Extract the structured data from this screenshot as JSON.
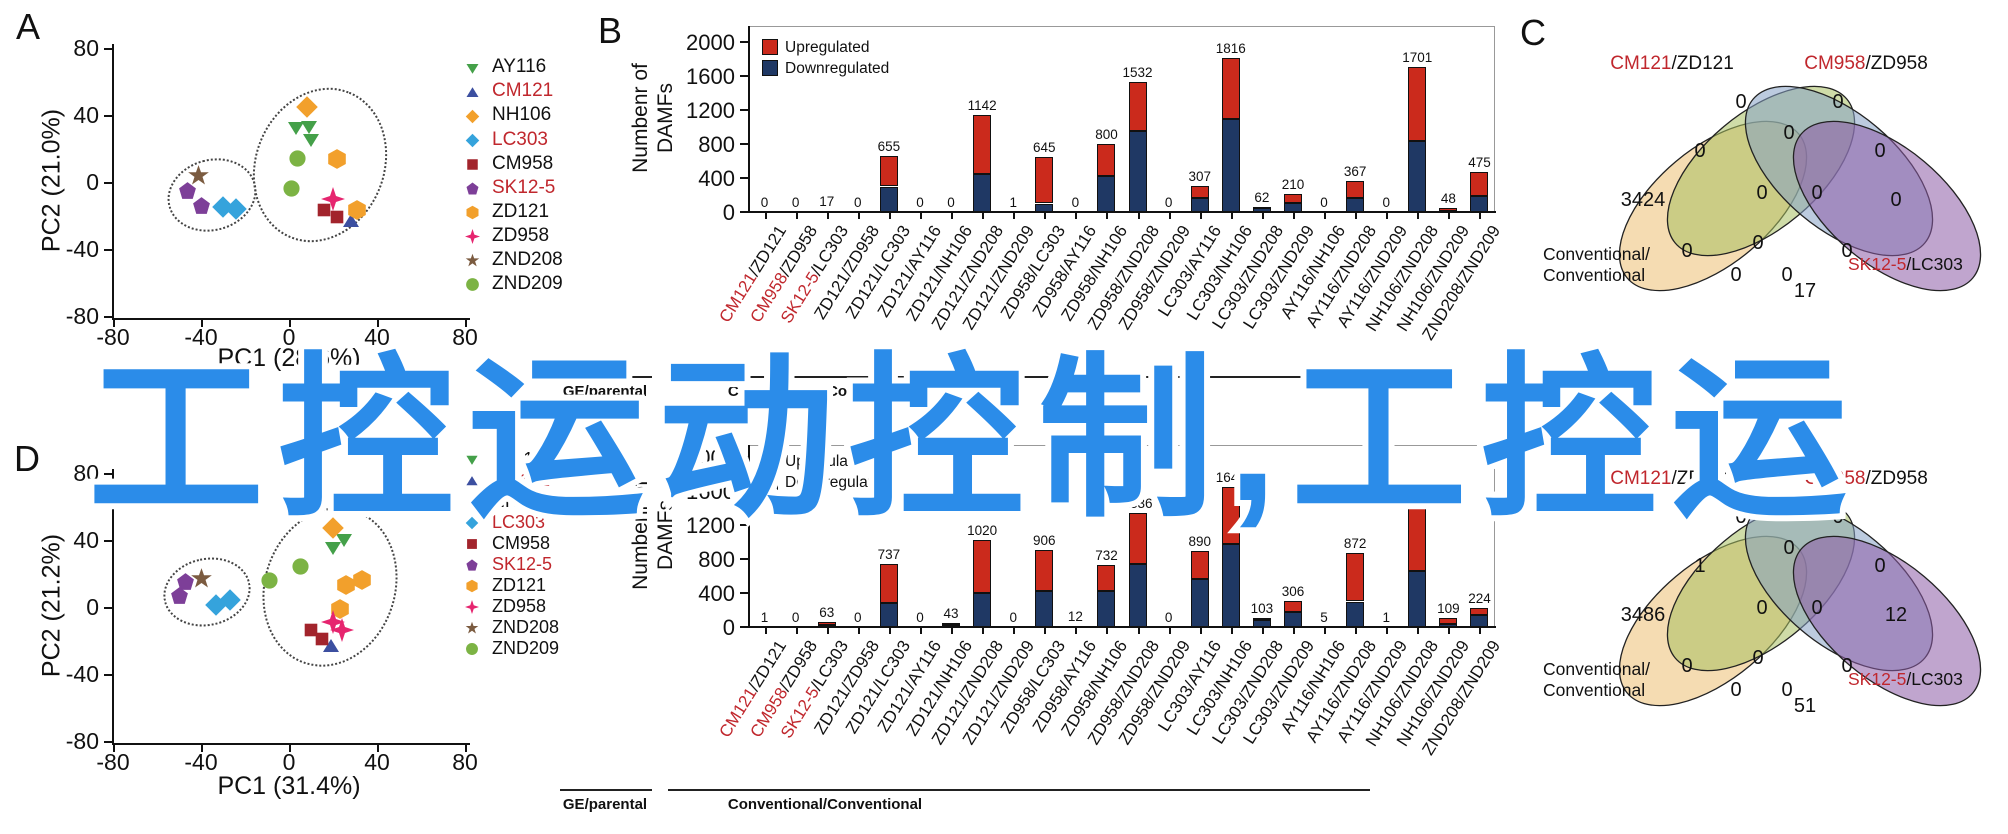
{
  "watermark": {
    "text": "工控运动控制,工控运",
    "color": "#2B8CE9"
  },
  "colors": {
    "upregulated": "#CB2A1C",
    "downregulated": "#1F3864",
    "highlight_red": "#C0272D",
    "venn_fills": [
      "#ECBF73",
      "#A8BF61",
      "#85A0C5",
      "#8C5BA6"
    ]
  },
  "samples": [
    {
      "label": "AY116",
      "shape": "triangle-down",
      "color": "#44A049",
      "highlight": false
    },
    {
      "label": "CM121",
      "shape": "triangle-up",
      "color": "#3C4FA0",
      "highlight": true
    },
    {
      "label": "NH106",
      "shape": "diamond",
      "color": "#F2A02C",
      "highlight": false
    },
    {
      "label": "LC303",
      "shape": "diamond",
      "color": "#35A3DC",
      "highlight": true
    },
    {
      "label": "CM958",
      "shape": "square",
      "color": "#A2242C",
      "highlight": false
    },
    {
      "label": "SK12-5",
      "shape": "pentagon",
      "color": "#7D3F98",
      "highlight": true
    },
    {
      "label": "ZD121",
      "shape": "hexagon",
      "color": "#F2A02C",
      "highlight": false
    },
    {
      "label": "ZD958",
      "shape": "star4",
      "color": "#E6256F",
      "highlight": false
    },
    {
      "label": "ZND208",
      "shape": "star5",
      "color": "#7B5B40",
      "highlight": false
    },
    {
      "label": "ZND209",
      "shape": "circle",
      "color": "#7CB344",
      "highlight": false
    }
  ],
  "panel_a": {
    "letter": "A",
    "xlabel": "PC1 (28.6%)",
    "ylabel": "PC2 (21.0%)",
    "xticks": [
      -80,
      -40,
      0,
      40,
      80
    ],
    "yticks": [
      80,
      40,
      0,
      -40,
      -80
    ]
  },
  "panel_d": {
    "letter": "D",
    "xlabel": "PC1 (31.4%)",
    "ylabel": "PC2 (21.2%)",
    "xticks": [
      -80,
      -40,
      0,
      40,
      80
    ],
    "yticks": [
      80,
      40,
      0,
      -40,
      -80
    ]
  },
  "panel_b_letter": "B",
  "panel_c_letter": "C",
  "bar_common": {
    "ylabel_lines": [
      "Numbenr of",
      "DAMFs"
    ],
    "yticks": [
      2000,
      1600,
      1200,
      800,
      400,
      0
    ],
    "legend": [
      {
        "label": "Upregulated"
      },
      {
        "label": "Downregulated"
      }
    ],
    "group_labels": [
      {
        "label": "GE/parental"
      },
      {
        "label": "Conventional/Conventional"
      }
    ],
    "categories": [
      {
        "a": "CM121",
        "b": "ZD121",
        "highlight": true
      },
      {
        "a": "CM958",
        "b": "ZD958",
        "highlight": true
      },
      {
        "a": "SK12-5",
        "b": "LC303",
        "highlight": true
      },
      {
        "a": "ZD121",
        "b": "ZD958",
        "highlight": false
      },
      {
        "a": "ZD121",
        "b": "LC303",
        "highlight": false
      },
      {
        "a": "ZD121",
        "b": "AY116",
        "highlight": false
      },
      {
        "a": "ZD121",
        "b": "NH106",
        "highlight": false
      },
      {
        "a": "ZD121",
        "b": "ZND208",
        "highlight": false
      },
      {
        "a": "ZD121",
        "b": "ZND209",
        "highlight": false
      },
      {
        "a": "ZD958",
        "b": "LC303",
        "highlight": false
      },
      {
        "a": "ZD958",
        "b": "AY116",
        "highlight": false
      },
      {
        "a": "ZD958",
        "b": "NH106",
        "highlight": false
      },
      {
        "a": "ZD958",
        "b": "ZND208",
        "highlight": false
      },
      {
        "a": "ZD958",
        "b": "ZND209",
        "highlight": false
      },
      {
        "a": "LC303",
        "b": "AY116",
        "highlight": false
      },
      {
        "a": "LC303",
        "b": "NH106",
        "highlight": false
      },
      {
        "a": "LC303",
        "b": "ZND208",
        "highlight": false
      },
      {
        "a": "LC303",
        "b": "ZND209",
        "highlight": false
      },
      {
        "a": "AY116",
        "b": "NH106",
        "highlight": false
      },
      {
        "a": "AY116",
        "b": "ZND208",
        "highlight": false
      },
      {
        "a": "AY116",
        "b": "ZND209",
        "highlight": false
      },
      {
        "a": "NH106",
        "b": "ZND208",
        "highlight": false
      },
      {
        "a": "NH106",
        "b": "ZND209",
        "highlight": false
      },
      {
        "a": "ZND208",
        "b": "ZND209",
        "highlight": false
      }
    ]
  },
  "venn_labels": {
    "top": [
      {
        "red": "CM121",
        "black": "/ZD121"
      },
      {
        "red": "CM958",
        "black": "/ZD958"
      }
    ],
    "bottom_left_lines": [
      "Conventional/",
      "Conventional"
    ],
    "bottom_right": {
      "red": "SK12-5",
      "black": "/LC303"
    }
  },
  "chart_data": [
    {
      "id": "pca-top",
      "type": "scatter",
      "panel": "A",
      "xlabel": "PC1 (28.6%)",
      "ylabel": "PC2 (21.0%)",
      "xlim": [
        -80,
        80
      ],
      "ylim": [
        -80,
        80
      ],
      "clusters": 2,
      "series": [
        {
          "name": "AY116",
          "points": [
            [
              3,
              32
            ],
            [
              9,
              33
            ],
            [
              10,
              25
            ]
          ]
        },
        {
          "name": "CM121",
          "points": [
            [
              28,
              -23
            ]
          ]
        },
        {
          "name": "NH106",
          "points": [
            [
              8,
              45
            ]
          ]
        },
        {
          "name": "LC303",
          "points": [
            [
              -30,
              -15
            ],
            [
              -24,
              -16
            ]
          ]
        },
        {
          "name": "CM958",
          "points": [
            [
              16,
              -17
            ],
            [
              22,
              -21
            ]
          ]
        },
        {
          "name": "SK12-5",
          "points": [
            [
              -46,
              -5
            ],
            [
              -40,
              -14
            ]
          ]
        },
        {
          "name": "ZD121",
          "points": [
            [
              22,
              14
            ],
            [
              31,
              -17
            ]
          ]
        },
        {
          "name": "ZD958",
          "points": [
            [
              20,
              -10
            ]
          ]
        },
        {
          "name": "ZND208",
          "points": [
            [
              -41,
              4
            ]
          ]
        },
        {
          "name": "ZND209",
          "points": [
            [
              4,
              14
            ],
            [
              1,
              -4
            ]
          ]
        }
      ]
    },
    {
      "id": "damf-bars-top",
      "type": "bar",
      "panel": "B",
      "stacked": true,
      "ylabel": "Numbenr of DAMFs",
      "ylim": [
        0,
        2000
      ],
      "legend_position": "top-left",
      "categories": [
        "CM121/ZD121",
        "CM958/ZD958",
        "SK12-5/LC303",
        "ZD121/ZD958",
        "ZD121/LC303",
        "ZD121/AY116",
        "ZD121/NH106",
        "ZD121/ZND208",
        "ZD121/ZND209",
        "ZD958/LC303",
        "ZD958/AY116",
        "ZD958/NH106",
        "ZD958/ZND208",
        "ZD958/ZND209",
        "LC303/AY116",
        "LC303/NH106",
        "LC303/ZND208",
        "LC303/ZND209",
        "AY116/NH106",
        "AY116/ZND208",
        "AY116/ZND209",
        "NH106/ZND208",
        "NH106/ZND209",
        "ZND208/ZND209"
      ],
      "totals": [
        0,
        0,
        17,
        0,
        655,
        0,
        0,
        1142,
        1,
        645,
        0,
        800,
        1532,
        0,
        307,
        1816,
        62,
        210,
        0,
        367,
        0,
        1701,
        48,
        475
      ],
      "series": [
        {
          "name": "Upregulated",
          "values": [
            0,
            0,
            0,
            0,
            355,
            0,
            0,
            692,
            0,
            545,
            0,
            380,
            582,
            0,
            137,
            726,
            12,
            105,
            0,
            197,
            0,
            871,
            38,
            285
          ]
        },
        {
          "name": "Downregulated",
          "values": [
            0,
            0,
            17,
            0,
            300,
            0,
            0,
            450,
            1,
            100,
            0,
            420,
            950,
            0,
            170,
            1090,
            50,
            105,
            0,
            170,
            0,
            830,
            10,
            190
          ]
        }
      ],
      "groups": [
        {
          "label": "GE/parental",
          "span": [
            0,
            2
          ]
        },
        {
          "label": "Conventional/Conventional",
          "span": [
            3,
            23
          ]
        }
      ]
    },
    {
      "id": "venn-top",
      "type": "venn",
      "panel": "C",
      "sets": [
        "Conventional/Conventional",
        "CM121/ZD121",
        "CM958/ZD958",
        "SK12-5/LC303"
      ],
      "regions": {
        "A": 3424,
        "B": 0,
        "C": 0,
        "D": 0,
        "AB": 0,
        "AC": 0,
        "AD": 17,
        "BC": 0,
        "BD": 0,
        "CD": 0,
        "ABC": 0,
        "ABD": 0,
        "ACD": 0,
        "BCD": 0,
        "ABCD": 0
      }
    },
    {
      "id": "pca-bottom",
      "type": "scatter",
      "panel": "D",
      "xlabel": "PC1 (31.4%)",
      "ylabel": "PC2 (21.2%)",
      "xlim": [
        -80,
        80
      ],
      "ylim": [
        -80,
        80
      ],
      "clusters": 2,
      "series": [
        {
          "name": "AY116",
          "points": [
            [
              25,
              40
            ],
            [
              20,
              35
            ]
          ]
        },
        {
          "name": "CM121",
          "points": [
            [
              19,
              -23
            ]
          ]
        },
        {
          "name": "NH106",
          "points": [
            [
              20,
              47
            ]
          ]
        },
        {
          "name": "LC303",
          "points": [
            [
              -33,
              1
            ],
            [
              -27,
              4
            ]
          ]
        },
        {
          "name": "CM958",
          "points": [
            [
              10,
              -14
            ],
            [
              15,
              -19
            ]
          ]
        },
        {
          "name": "SK12-5",
          "points": [
            [
              -47,
              15
            ],
            [
              -50,
              7
            ]
          ]
        },
        {
          "name": "ZD121",
          "points": [
            [
              26,
              13
            ],
            [
              33,
              16
            ],
            [
              23,
              -1
            ]
          ]
        },
        {
          "name": "ZD958",
          "points": [
            [
              20,
              -9
            ],
            [
              24,
              -14
            ]
          ]
        },
        {
          "name": "ZND208",
          "points": [
            [
              -40,
              17
            ]
          ]
        },
        {
          "name": "ZND209",
          "points": [
            [
              -9,
              16
            ],
            [
              5,
              24
            ]
          ]
        }
      ]
    },
    {
      "id": "damf-bars-bottom",
      "type": "bar",
      "panel": "",
      "stacked": true,
      "ylabel": "Numbenr of DAMFs",
      "ylim": [
        0,
        2000
      ],
      "legend_position": "top-left",
      "categories": [
        "CM121/ZD121",
        "CM958/ZD958",
        "SK12-5/LC303",
        "ZD121/ZD958",
        "ZD121/LC303",
        "ZD121/AY116",
        "ZD121/NH106",
        "ZD121/ZND208",
        "ZD121/ZND209",
        "ZD958/LC303",
        "ZD958/AY116",
        "ZD958/NH106",
        "ZD958/ZND208",
        "ZD958/ZND209",
        "LC303/AY116",
        "LC303/NH106",
        "LC303/ZND208",
        "LC303/ZND209",
        "AY116/NH106",
        "AY116/ZND208",
        "AY116/ZND209",
        "NH106/ZND208",
        "NH106/ZND209",
        "ZND208/ZND209"
      ],
      "totals": [
        1,
        0,
        63,
        0,
        737,
        0,
        43,
        1020,
        0,
        906,
        12,
        732,
        1336,
        0,
        890,
        1646,
        103,
        306,
        5,
        872,
        1,
        1561,
        109,
        224
      ],
      "series": [
        {
          "name": "Upregulated",
          "values": [
            0,
            0,
            43,
            0,
            457,
            0,
            23,
            620,
            0,
            486,
            6,
            307,
            591,
            0,
            320,
            671,
            23,
            126,
            2,
            572,
            0,
            901,
            79,
            84
          ]
        },
        {
          "name": "Downregulated",
          "values": [
            1,
            0,
            20,
            0,
            280,
            0,
            20,
            400,
            0,
            420,
            6,
            425,
            745,
            0,
            570,
            975,
            80,
            180,
            3,
            300,
            1,
            660,
            30,
            140
          ]
        }
      ],
      "groups": [
        {
          "label": "GE/parental",
          "span": [
            0,
            2
          ]
        },
        {
          "label": "Conventional/Conventional",
          "span": [
            3,
            23
          ]
        }
      ]
    },
    {
      "id": "venn-bottom",
      "type": "venn",
      "panel": "",
      "sets": [
        "Conventional/Conventional",
        "CM121/ZD121",
        "CM958/ZD958",
        "SK12-5/LC303"
      ],
      "regions": {
        "A": 3486,
        "B": 0,
        "C": 0,
        "D": 12,
        "AB": 1,
        "AC": 0,
        "AD": 51,
        "BC": 0,
        "BD": 0,
        "CD": 0,
        "ABC": 0,
        "ABD": 0,
        "ACD": 0,
        "BCD": 0,
        "ABCD": 0
      }
    }
  ]
}
